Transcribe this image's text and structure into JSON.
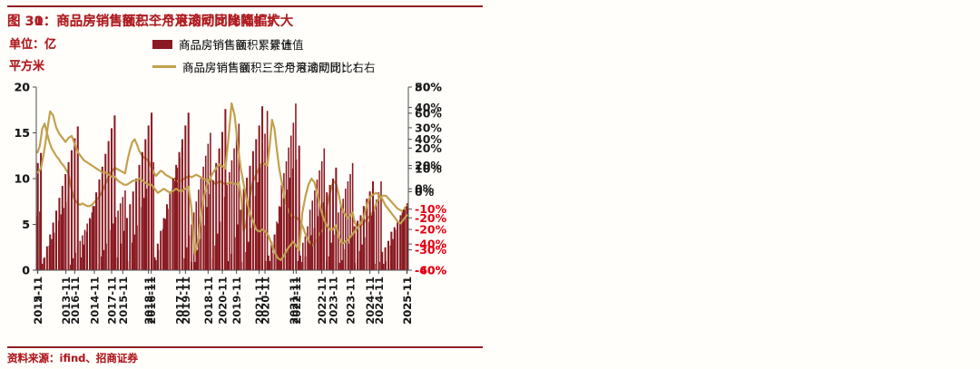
{
  "colors": {
    "axis": "#4d4d4d",
    "text": "#1a1a1a",
    "negative": "#E60012",
    "accent_red": "#B01E23",
    "rule_red": "#8E1F22",
    "background": "#fffefb"
  },
  "chart_data": [
    {
      "type": "bar",
      "title": "图 30：商品房销售额三个月滚动同比降幅扩大",
      "unit_lines": [
        "单位：亿",
        "平方米"
      ],
      "source": "资料来源：ifind、招商证券",
      "legend": [
        {
          "label": "商品房销售额：累计值",
          "type": "bar",
          "color": "#8A1A22"
        },
        {
          "label": "商品房销售额：三个月滚动同比：右",
          "type": "line",
          "color": "#C2A14D"
        }
      ],
      "months_per_tick": 12,
      "x_tick_labels": [
        "2012-11",
        "2013-11",
        "2014-11",
        "2015-11",
        "2016-11",
        "2017-11",
        "2018-11",
        "2019-11",
        "2020-11",
        "2021-11",
        "2022-11",
        "2023-11",
        "2024-11",
        "2025-11"
      ],
      "left_axis": {
        "min": 0,
        "max": 20,
        "ticks": [
          "20",
          "15",
          "10",
          "5",
          "0"
        ]
      },
      "right_axis": {
        "min": -60,
        "max": 80,
        "tick_labels": [
          "80%",
          "60%",
          "40%",
          "20%",
          "0%",
          "-20%",
          "-40%",
          "-60%"
        ]
      },
      "bars": {
        "name": "商品房销售额：累计值",
        "values": [
          5.9,
          6.4,
          0.7,
          1.4,
          2.0,
          2.7,
          3.4,
          4.1,
          4.7,
          5.4,
          6.1,
          6.8,
          7.4,
          8.1,
          0.6,
          1.3,
          1.9,
          2.5,
          3.2,
          3.8,
          4.4,
          5.1,
          5.7,
          6.3,
          7.0,
          7.6,
          0.7,
          1.5,
          2.2,
          2.9,
          3.6,
          4.4,
          5.1,
          5.8,
          6.5,
          7.3,
          8.0,
          8.7,
          1.0,
          2.0,
          3.0,
          3.9,
          4.9,
          5.9,
          6.9,
          7.9,
          8.9,
          9.8,
          10.8,
          11.8,
          1.1,
          2.2,
          3.4,
          4.5,
          5.6,
          6.7,
          7.8,
          8.9,
          10.1,
          11.2,
          12.3,
          13.4,
          1.3,
          2.5,
          3.8,
          5.0,
          6.3,
          7.5,
          8.8,
          10.0,
          11.3,
          12.5,
          13.8,
          15.0,
          1.3,
          2.7,
          4.0,
          5.3,
          6.7,
          8.0,
          9.3,
          10.7,
          12.0,
          13.3,
          14.7,
          16.0,
          0.9,
          0.9,
          2.0,
          3.1,
          4.6,
          6.7,
          8.1,
          9.6,
          11.6,
          13.1,
          14.9,
          17.4,
          1.0,
          1.9,
          3.8,
          5.3,
          7.0,
          9.3,
          10.6,
          11.9,
          13.4,
          14.7,
          16.1,
          18.2,
          1.0,
          1.6,
          3.0,
          3.7,
          4.8,
          6.6,
          7.6,
          8.7,
          9.9,
          10.9,
          11.9,
          13.3,
          1.0,
          1.5,
          3.0,
          3.9,
          5.0,
          6.3,
          7.0,
          7.8,
          8.9,
          9.7,
          10.5,
          11.7,
          0.8,
          1.1,
          2.1,
          2.8,
          3.6,
          4.7,
          5.3,
          6.0,
          6.9,
          7.7,
          8.5,
          9.7,
          0.7,
          1.0,
          2.1,
          2.7,
          3.4,
          4.4,
          4.9,
          5.5,
          6.3,
          6.9,
          7.3
        ]
      },
      "line": {
        "name": "商品房销售额：三个月滚动同比：右",
        "values": [
          30,
          35,
          48,
          52,
          45,
          38,
          33,
          30,
          27,
          25,
          22,
          20,
          17,
          14,
          5,
          -3,
          -7,
          -9,
          -10,
          -9,
          -10,
          -11,
          -11,
          -10,
          -8,
          -6,
          -4,
          -1,
          3,
          7,
          11,
          15,
          17,
          18,
          17,
          16,
          15,
          14,
          24,
          32,
          38,
          40,
          36,
          31,
          28,
          26,
          25,
          23,
          19,
          15,
          12,
          14,
          16,
          15,
          13,
          12,
          11,
          10,
          9,
          8,
          8,
          9,
          10,
          11,
          12,
          11,
          12,
          13,
          12,
          11,
          10,
          9,
          9,
          10,
          8,
          6,
          7,
          8,
          7,
          6,
          6,
          7,
          7,
          6,
          6,
          7,
          -5,
          -30,
          -25,
          -12,
          0,
          8,
          12,
          16,
          20,
          22,
          21,
          20,
          35,
          55,
          48,
          32,
          18,
          8,
          -2,
          -10,
          -15,
          -18,
          -20,
          -19,
          -21,
          -23,
          -27,
          -32,
          -36,
          -39,
          -41,
          -39,
          -36,
          -32,
          -30,
          -28,
          -12,
          -4,
          3,
          8,
          6,
          -1,
          -10,
          -15,
          -18,
          -20,
          -18,
          -16,
          -24,
          -27,
          -26,
          -25,
          -23,
          -21,
          -19,
          -17,
          -14,
          -9,
          -5,
          -4,
          -3,
          -3,
          -5,
          -7,
          -9,
          -11,
          -13,
          -14,
          -15,
          -13,
          -11
        ]
      }
    },
    {
      "type": "bar",
      "title": "图 31：商品房销售面积三个月滚动同比降幅扩大",
      "unit_lines": [
        "单位：亿",
        "平方米"
      ],
      "source": "资料来源：ifind、招商证券",
      "legend": [
        {
          "label": "商品房销售面积：累计值",
          "type": "bar",
          "color": "#8A1A22"
        },
        {
          "label": "商品房销售面积：三个月滚动同比：右",
          "type": "line",
          "color": "#C2A14D"
        }
      ],
      "months_per_tick": 12,
      "x_tick_labels": [
        "2015-11",
        "2016-11",
        "2017-11",
        "2018-11",
        "2019-11",
        "2020-11",
        "2021-11",
        "2022-11",
        "2023-11",
        "2024-11",
        "2025-11"
      ],
      "left_axis": {
        "min": 0,
        "max": 20,
        "ticks": [
          "20",
          "15",
          "10",
          "5",
          "0"
        ]
      },
      "right_axis": {
        "min": -40,
        "max": 50,
        "tick_labels": [
          "50%",
          "40%",
          "30%",
          "20%",
          "10%",
          "0%",
          "-10%",
          "-20%",
          "-30%",
          "-40%"
        ]
      },
      "bars": {
        "name": "商品房销售面积：累计值",
        "values": [
          11.7,
          12.8,
          1.3,
          2.6,
          3.9,
          5.2,
          6.5,
          7.9,
          9.2,
          10.5,
          11.8,
          13.1,
          14.4,
          15.7,
          1.4,
          2.8,
          4.2,
          5.6,
          7.0,
          8.5,
          9.9,
          11.3,
          12.7,
          14.1,
          15.5,
          16.9,
          1.4,
          2.9,
          4.3,
          5.7,
          7.2,
          8.6,
          10.0,
          11.5,
          12.9,
          14.3,
          15.8,
          17.2,
          1.4,
          2.9,
          4.3,
          5.7,
          7.2,
          8.6,
          10.0,
          11.5,
          12.9,
          14.3,
          15.8,
          17.2,
          0.9,
          0.9,
          2.2,
          3.4,
          4.9,
          6.9,
          8.3,
          9.8,
          11.7,
          13.3,
          15.1,
          17.6,
          1.0,
          1.8,
          3.6,
          5.0,
          6.6,
          8.9,
          10.1,
          11.4,
          13.0,
          14.3,
          15.8,
          17.9,
          1.0,
          1.6,
          3.1,
          3.9,
          5.1,
          6.9,
          7.8,
          8.8,
          10.1,
          11.1,
          12.1,
          13.6,
          0.9,
          1.5,
          3.0,
          3.8,
          4.6,
          5.9,
          6.7,
          7.4,
          8.5,
          9.3,
          10.0,
          11.2,
          0.8,
          1.1,
          2.3,
          2.9,
          3.7,
          4.8,
          5.4,
          6.0,
          7.0,
          7.8,
          8.6,
          9.7,
          0.7,
          0.9,
          2.0,
          2.5,
          3.2,
          4.2,
          4.7,
          5.2,
          6.0,
          6.6,
          7.0
        ]
      },
      "line": {
        "name": "商品房销售面积：三个月滚动同比：右",
        "values": [
          8,
          10,
          18,
          28,
          38,
          36,
          30,
          27,
          25,
          23,
          25,
          26,
          22,
          18,
          16,
          14,
          13,
          12,
          11,
          10,
          9,
          8,
          8,
          7,
          6,
          6,
          4,
          3,
          2,
          2,
          3,
          4,
          4,
          5,
          4,
          3,
          2,
          2,
          0,
          -2,
          -1,
          0,
          -1,
          -2,
          -1,
          0,
          -1,
          -1,
          0,
          1,
          -10,
          -32,
          -26,
          -14,
          -4,
          2,
          5,
          8,
          10,
          12,
          11,
          10,
          25,
          42,
          36,
          22,
          10,
          2,
          -6,
          -12,
          -16,
          -20,
          -21,
          -20,
          -21,
          -23,
          -27,
          -31,
          -34,
          -35,
          -33,
          -30,
          -28,
          -26,
          -28,
          -30,
          -12,
          -4,
          2,
          5,
          3,
          -3,
          -10,
          -15,
          -18,
          -20,
          -20,
          -18,
          -24,
          -27,
          -26,
          -25,
          -23,
          -21,
          -19,
          -17,
          -14,
          -8,
          -4,
          -3,
          -2,
          -3,
          -5,
          -8,
          -10,
          -12,
          -14,
          -16,
          -17,
          -15,
          -13
        ]
      }
    }
  ]
}
